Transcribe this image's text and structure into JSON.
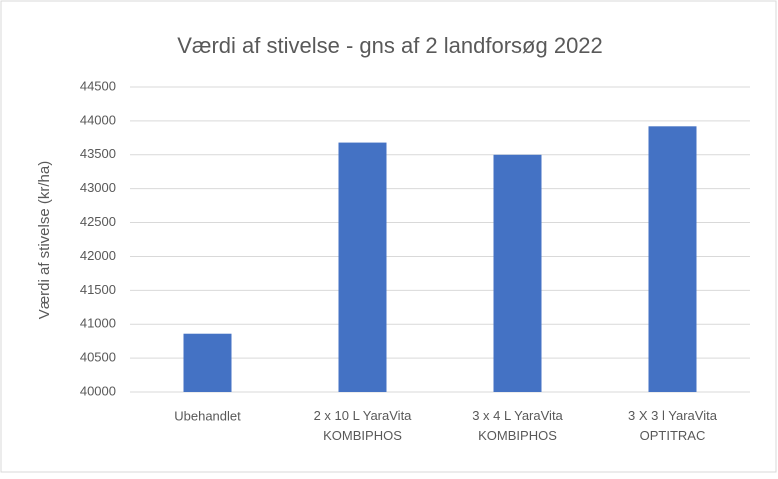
{
  "chart_data": {
    "type": "bar",
    "title": "Værdi af stivelse - gns af 2 landforsøg 2022",
    "y_label": "Værdi af stivelse (kr/ha)",
    "categories": [
      "Ubehandlet",
      "2 x 10 L YaraVita\nKOMBIPHOS",
      "3 x 4 L YaraVita\nKOMBIPHOS",
      "3 X 3 l YaraVita\nOPTITRAC"
    ],
    "values": [
      40860,
      43680,
      43500,
      43920
    ],
    "color": "#4472c4",
    "ylim": [
      40000,
      44500
    ],
    "yticks": [
      40000,
      40500,
      41000,
      41500,
      42000,
      42500,
      43000,
      43500,
      44000,
      44500
    ],
    "grid": true
  }
}
